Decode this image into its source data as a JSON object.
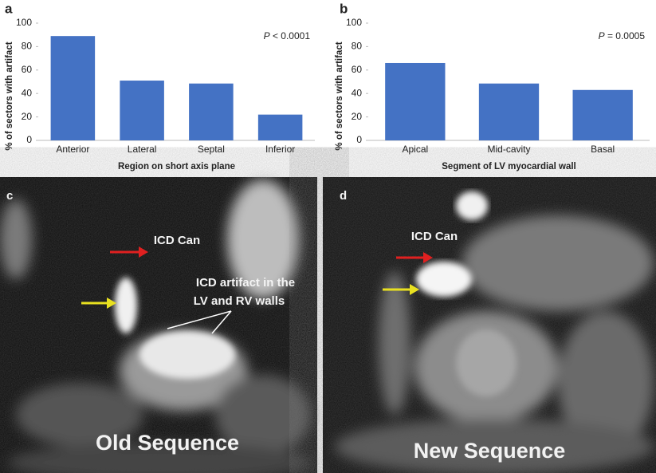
{
  "chart_data": [
    {
      "type": "bar",
      "panel": "a",
      "categories": [
        "Anterior",
        "Lateral",
        "Septal",
        "Inferior"
      ],
      "values": [
        89,
        51,
        48.5,
        22
      ],
      "color": "#4472c4",
      "ylim": [
        0,
        100
      ],
      "yticks": [
        0,
        20,
        40,
        60,
        80,
        100
      ],
      "xlabel": "Region on short axis plane",
      "ylabel": "% of sectors with artifact",
      "annotation_symbol": "P",
      "annotation": "< 0.0001"
    },
    {
      "type": "bar",
      "panel": "b",
      "categories": [
        "Apical",
        "Mid-cavity",
        "Basal"
      ],
      "values": [
        66,
        48.5,
        43
      ],
      "color": "#4472c4",
      "ylim": [
        0,
        100
      ],
      "yticks": [
        0,
        20,
        40,
        60,
        80,
        100
      ],
      "xlabel": "Segment of LV myocardial wall",
      "ylabel": "% of sectors with artifact",
      "annotation_symbol": "P",
      "annotation": "= 0.0005"
    }
  ],
  "images": [
    {
      "panel": "c",
      "annotations": [
        "ICD Can",
        "ICD artifact in the",
        "LV and RV walls"
      ],
      "caption": "Old Sequence"
    },
    {
      "panel": "d",
      "annotations": [
        "ICD Can"
      ],
      "caption": "New Sequence"
    }
  ]
}
